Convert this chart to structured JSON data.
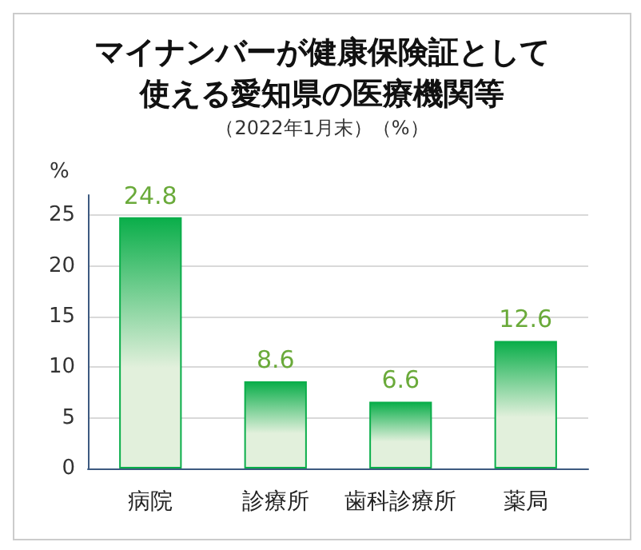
{
  "chart_data": {
    "type": "bar",
    "title": "マイナンバーが健康保険証として使える愛知県の医療機関等",
    "subtitle": "（2022年1月末）（%）",
    "ylabel": "%",
    "categories": [
      "病院",
      "診療所",
      "歯科診療所",
      "薬局"
    ],
    "values": [
      24.8,
      8.6,
      6.6,
      12.6
    ],
    "color": "#0aae4a",
    "ylim": [
      0,
      27
    ],
    "yticks": [
      0,
      5,
      10,
      15,
      20,
      25
    ],
    "grid": "y",
    "data_labels": true
  }
}
